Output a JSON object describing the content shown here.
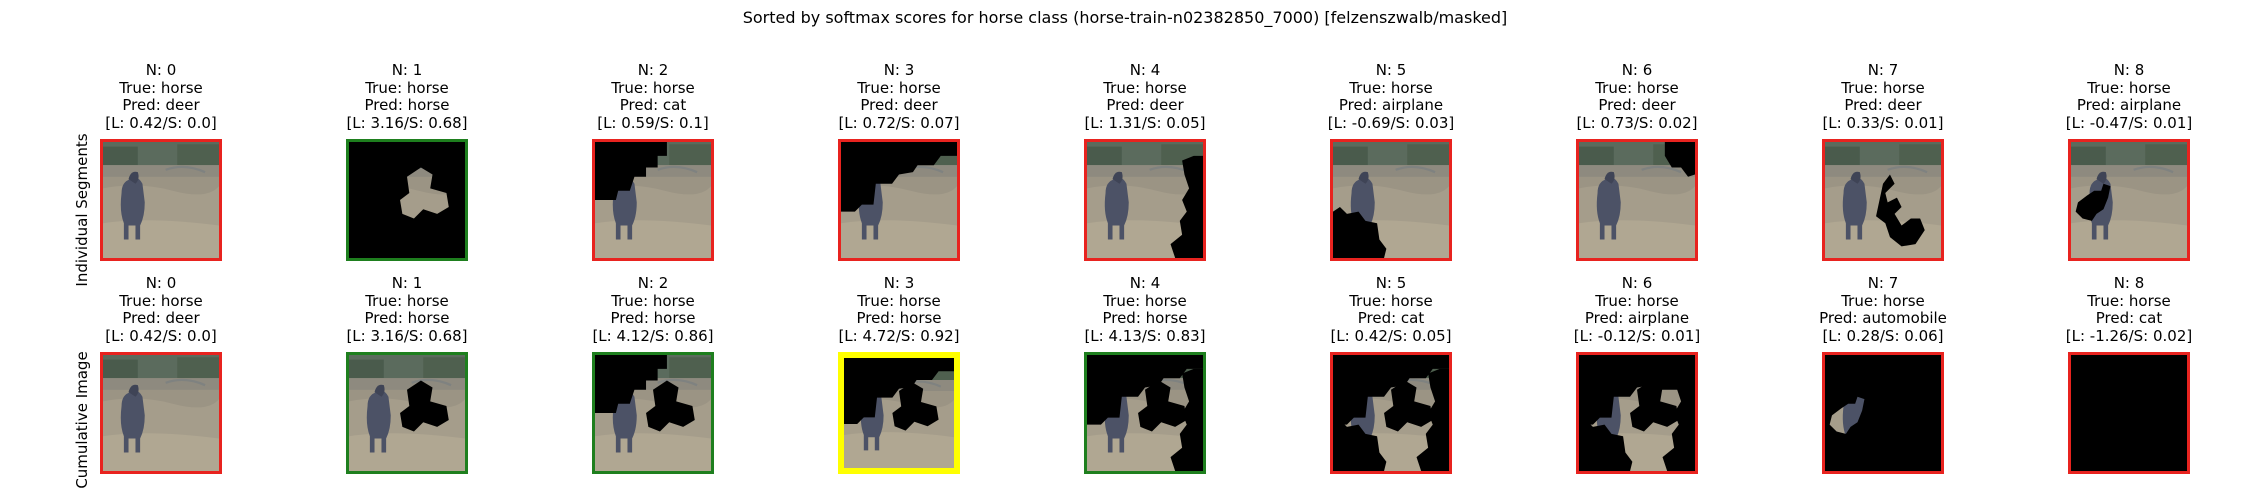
{
  "title": "Sorted by softmax scores for horse class (horse-train-n02382850_7000) [felzenszwalb/masked]",
  "row_labels": [
    "Individual Segments",
    "Cumulative Image"
  ],
  "border_colors": {
    "red": "#e8231f",
    "green": "#1e7f1e",
    "yellow": "#ffff00"
  },
  "rows": [
    [
      {
        "n": "N: 0",
        "true": "True: horse",
        "pred": "Pred: deer",
        "score": "[L: 0.42/S: 0.0]",
        "border": "red",
        "mask": "none"
      },
      {
        "n": "N: 1",
        "true": "True: horse",
        "pred": "Pred: horse",
        "score": "[L: 3.16/S: 0.68]",
        "border": "green",
        "mask": "seg1"
      },
      {
        "n": "N: 2",
        "true": "True: horse",
        "pred": "Pred: cat",
        "score": "[L: 0.59/S: 0.1]",
        "border": "red",
        "mask": "seg2"
      },
      {
        "n": "N: 3",
        "true": "True: horse",
        "pred": "Pred: deer",
        "score": "[L: 0.72/S: 0.07]",
        "border": "red",
        "mask": "seg3"
      },
      {
        "n": "N: 4",
        "true": "True: horse",
        "pred": "Pred: deer",
        "score": "[L: 1.31/S: 0.05]",
        "border": "red",
        "mask": "seg4"
      },
      {
        "n": "N: 5",
        "true": "True: horse",
        "pred": "Pred: airplane",
        "score": "[L: -0.69/S: 0.03]",
        "border": "red",
        "mask": "seg5"
      },
      {
        "n": "N: 6",
        "true": "True: horse",
        "pred": "Pred: deer",
        "score": "[L: 0.73/S: 0.02]",
        "border": "red",
        "mask": "seg6"
      },
      {
        "n": "N: 7",
        "true": "True: horse",
        "pred": "Pred: deer",
        "score": "[L: 0.33/S: 0.01]",
        "border": "red",
        "mask": "seg7"
      },
      {
        "n": "N: 8",
        "true": "True: horse",
        "pred": "Pred: airplane",
        "score": "[L: -0.47/S: 0.01]",
        "border": "red",
        "mask": "seg8"
      }
    ],
    [
      {
        "n": "N: 0",
        "true": "True: horse",
        "pred": "Pred: deer",
        "score": "[L: 0.42/S: 0.0]",
        "border": "red",
        "mask": "none"
      },
      {
        "n": "N: 1",
        "true": "True: horse",
        "pred": "Pred: horse",
        "score": "[L: 3.16/S: 0.68]",
        "border": "green",
        "mask": "cum1"
      },
      {
        "n": "N: 2",
        "true": "True: horse",
        "pred": "Pred: horse",
        "score": "[L: 4.12/S: 0.86]",
        "border": "green",
        "mask": "cum2"
      },
      {
        "n": "N: 3",
        "true": "True: horse",
        "pred": "Pred: horse",
        "score": "[L: 4.72/S: 0.92]",
        "border": "yellow",
        "mask": "cum3"
      },
      {
        "n": "N: 4",
        "true": "True: horse",
        "pred": "Pred: horse",
        "score": "[L: 4.13/S: 0.83]",
        "border": "green",
        "mask": "cum4"
      },
      {
        "n": "N: 5",
        "true": "True: horse",
        "pred": "Pred: cat",
        "score": "[L: 0.42/S: 0.05]",
        "border": "red",
        "mask": "cum5"
      },
      {
        "n": "N: 6",
        "true": "True: horse",
        "pred": "Pred: airplane",
        "score": "[L: -0.12/S: 0.01]",
        "border": "red",
        "mask": "cum6"
      },
      {
        "n": "N: 7",
        "true": "True: horse",
        "pred": "Pred: automobile",
        "score": "[L: 0.28/S: 0.06]",
        "border": "red",
        "mask": "cum7"
      },
      {
        "n": "N: 8",
        "true": "True: horse",
        "pred": "Pred: cat",
        "score": "[L: -1.26/S: 0.02]",
        "border": "red",
        "mask": "cum8"
      }
    ]
  ]
}
